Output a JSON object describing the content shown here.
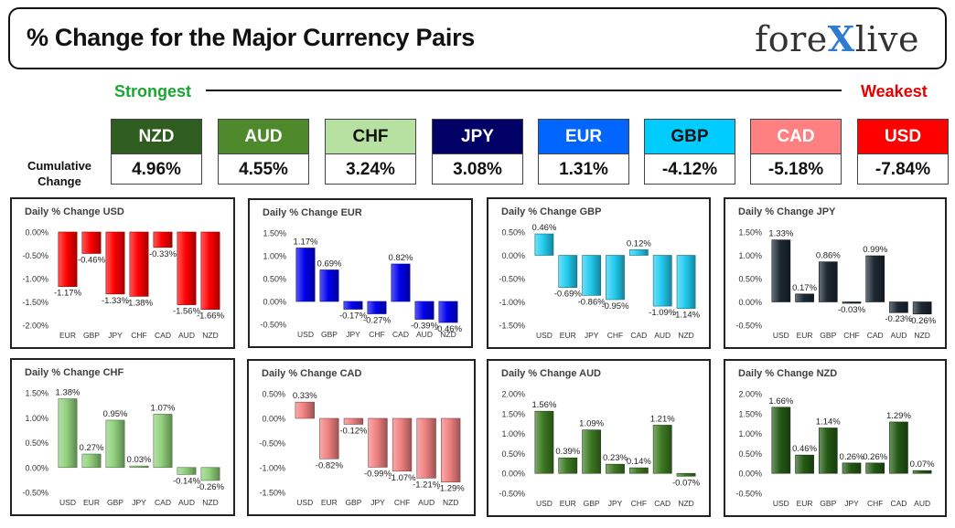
{
  "header": {
    "title": "% Change for the Major Currency Pairs",
    "logo_left": "fore",
    "logo_x": "X",
    "logo_right": "live"
  },
  "ranking": {
    "strongest_label": "Strongest",
    "weakest_label": "Weakest",
    "cumulative_label_line1": "Cumulative",
    "cumulative_label_line2": "Change",
    "currencies": [
      {
        "code": "NZD",
        "value": "4.96%",
        "bg": "#2f5d1f",
        "fg": "#ffffff"
      },
      {
        "code": "AUD",
        "value": "4.55%",
        "bg": "#4e8a2c",
        "fg": "#ffffff"
      },
      {
        "code": "CHF",
        "value": "3.24%",
        "bg": "#b7e1a1",
        "fg": "#111111"
      },
      {
        "code": "JPY",
        "value": "3.08%",
        "bg": "#000066",
        "fg": "#ffffff"
      },
      {
        "code": "EUR",
        "value": "1.31%",
        "bg": "#0066ff",
        "fg": "#ffffff"
      },
      {
        "code": "GBP",
        "value": "-4.12%",
        "bg": "#00ccff",
        "fg": "#111111"
      },
      {
        "code": "CAD",
        "value": "-5.18%",
        "bg": "#ff8080",
        "fg": "#ffffff"
      },
      {
        "code": "USD",
        "value": "-7.84%",
        "bg": "#ff0000",
        "fg": "#ffffff"
      }
    ]
  },
  "chart_data": [
    {
      "type": "bar",
      "title": "Daily % Change USD",
      "categories": [
        "EUR",
        "GBP",
        "JPY",
        "CHF",
        "CAD",
        "AUD",
        "NZD"
      ],
      "values": [
        -1.17,
        -0.46,
        -1.33,
        -1.38,
        -0.33,
        -1.56,
        -1.66
      ],
      "labels": [
        "-1.17%",
        "-0.46%",
        "-1.33%",
        "-1.38%",
        "-0.33%",
        "-1.56%",
        "-1.66%"
      ],
      "ylim": [
        -2.0,
        0.0
      ],
      "ticks": [
        0.0,
        -0.5,
        -1.0,
        -1.5,
        -2.0
      ],
      "tick_labels": [
        "0.00%",
        "-0.50%",
        "-1.00%",
        "-1.50%",
        "-2.00%"
      ],
      "color": "#ff0000"
    },
    {
      "type": "bar",
      "title": "Daily % Change EUR",
      "categories": [
        "USD",
        "GBP",
        "JPY",
        "CHF",
        "CAD",
        "AUD",
        "NZD"
      ],
      "values": [
        1.17,
        0.69,
        -0.17,
        -0.27,
        0.82,
        -0.39,
        -0.46
      ],
      "labels": [
        "1.17%",
        "0.69%",
        "-0.17%",
        "-0.27%",
        "0.82%",
        "-0.39%",
        "-0.46%"
      ],
      "ylim": [
        -0.5,
        1.5
      ],
      "ticks": [
        1.5,
        1.0,
        0.5,
        0.0,
        -0.5
      ],
      "tick_labels": [
        "1.50%",
        "1.00%",
        "0.50%",
        "0.00%",
        "-0.50%"
      ],
      "color": "#0000ee"
    },
    {
      "type": "bar",
      "title": "Daily % Change GBP",
      "categories": [
        "USD",
        "EUR",
        "JPY",
        "CHF",
        "CAD",
        "AUD",
        "NZD"
      ],
      "values": [
        0.46,
        -0.69,
        -0.86,
        -0.95,
        0.12,
        -1.09,
        -1.14
      ],
      "labels": [
        "0.46%",
        "-0.69%",
        "-0.86%",
        "-0.95%",
        "0.12%",
        "-1.09%",
        "-1.14%"
      ],
      "ylim": [
        -1.5,
        0.5
      ],
      "ticks": [
        0.5,
        0.0,
        -0.5,
        -1.0,
        -1.5
      ],
      "tick_labels": [
        "0.50%",
        "0.00%",
        "-0.50%",
        "-1.00%",
        "-1.50%"
      ],
      "color": "#22ccf0"
    },
    {
      "type": "bar",
      "title": "Daily % Change JPY",
      "categories": [
        "USD",
        "EUR",
        "GBP",
        "CHF",
        "CAD",
        "AUD",
        "NZD"
      ],
      "values": [
        1.33,
        0.17,
        0.86,
        -0.03,
        0.99,
        -0.23,
        -0.26
      ],
      "labels": [
        "1.33%",
        "0.17%",
        "0.86%",
        "-0.03%",
        "0.99%",
        "-0.23%",
        "-0.26%"
      ],
      "ylim": [
        -0.5,
        1.5
      ],
      "ticks": [
        1.5,
        1.0,
        0.5,
        0.0,
        -0.5
      ],
      "tick_labels": [
        "1.50%",
        "1.00%",
        "0.50%",
        "0.00%",
        "-0.50%"
      ],
      "color": "#1c2833"
    },
    {
      "type": "bar",
      "title": "Daily % Change CHF",
      "categories": [
        "USD",
        "EUR",
        "GBP",
        "JPY",
        "CAD",
        "AUD",
        "NZD"
      ],
      "values": [
        1.38,
        0.27,
        0.95,
        0.03,
        1.07,
        -0.14,
        -0.26
      ],
      "labels": [
        "1.38%",
        "0.27%",
        "0.95%",
        "0.03%",
        "1.07%",
        "-0.14%",
        "-0.26%"
      ],
      "ylim": [
        -0.5,
        1.5
      ],
      "ticks": [
        1.5,
        1.0,
        0.5,
        0.0,
        -0.5
      ],
      "tick_labels": [
        "1.50%",
        "1.00%",
        "0.50%",
        "0.00%",
        "-0.50%"
      ],
      "color": "#8fd07a"
    },
    {
      "type": "bar",
      "title": "Daily % Change CAD",
      "categories": [
        "USD",
        "EUR",
        "GBP",
        "JPY",
        "CHF",
        "AUD",
        "NZD"
      ],
      "values": [
        0.33,
        -0.82,
        -0.12,
        -0.99,
        -1.07,
        -1.21,
        -1.29
      ],
      "labels": [
        "0.33%",
        "-0.82%",
        "-0.12%",
        "-0.99%",
        "-1.07%",
        "-1.21%",
        "-1.29%"
      ],
      "ylim": [
        -1.5,
        0.5
      ],
      "ticks": [
        0.5,
        0.0,
        -0.5,
        -1.0,
        -1.5
      ],
      "tick_labels": [
        "0.50%",
        "0.00%",
        "-0.50%",
        "-1.00%",
        "-1.50%"
      ],
      "color": "#f08080"
    },
    {
      "type": "bar",
      "title": "Daily % Change AUD",
      "categories": [
        "USD",
        "EUR",
        "GBP",
        "JPY",
        "CHF",
        "CAD",
        "NZD"
      ],
      "values": [
        1.56,
        0.39,
        1.09,
        0.23,
        0.14,
        1.21,
        -0.07
      ],
      "labels": [
        "1.56%",
        "0.39%",
        "1.09%",
        "0.23%",
        "0.14%",
        "1.21%",
        "-0.07%"
      ],
      "ylim": [
        -0.5,
        2.0
      ],
      "ticks": [
        2.0,
        1.5,
        1.0,
        0.5,
        0.0,
        -0.5
      ],
      "tick_labels": [
        "2.00%",
        "1.50%",
        "1.00%",
        "0.50%",
        "0.00%",
        "-0.50%"
      ],
      "color": "#3d7a22"
    },
    {
      "type": "bar",
      "title": "Daily % Change NZD",
      "categories": [
        "USD",
        "EUR",
        "GBP",
        "JPY",
        "CHF",
        "CAD",
        "AUD"
      ],
      "values": [
        1.66,
        0.46,
        1.14,
        0.26,
        0.26,
        1.29,
        0.07
      ],
      "labels": [
        "1.66%",
        "0.46%",
        "1.14%",
        "0.26%",
        "0.26%",
        "1.29%",
        "0.07%"
      ],
      "ylim": [
        -0.5,
        2.0
      ],
      "ticks": [
        2.0,
        1.5,
        1.0,
        0.5,
        0.0,
        -0.5
      ],
      "tick_labels": [
        "2.00%",
        "1.50%",
        "1.00%",
        "0.50%",
        "0.00%",
        "-0.50%"
      ],
      "color": "#245a14"
    }
  ]
}
